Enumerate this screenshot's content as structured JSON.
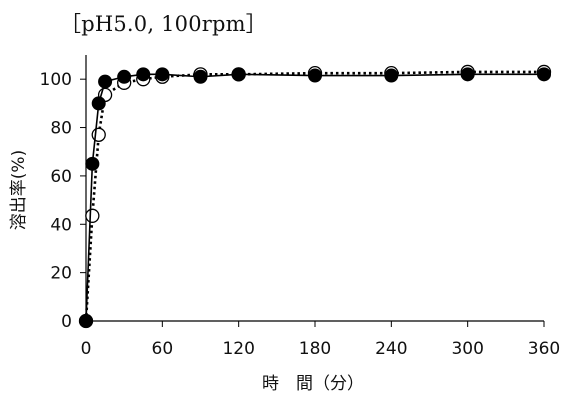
{
  "chart_data": {
    "type": "line",
    "title": "［pH5.0, 100rpm］",
    "xlabel": "時　間（分）",
    "ylabel": "溶出率(%)",
    "xlim": [
      0,
      360
    ],
    "ylim": [
      0,
      110
    ],
    "xticks": [
      0,
      60,
      120,
      180,
      240,
      300,
      360
    ],
    "yticks": [
      0,
      20,
      40,
      60,
      80,
      100
    ],
    "grid": false,
    "series": [
      {
        "marker": "filled-circle",
        "line": "solid",
        "color": "#000000",
        "points": [
          [
            0,
            0
          ],
          [
            5,
            65
          ],
          [
            10,
            90
          ],
          [
            15,
            99
          ],
          [
            30,
            101
          ],
          [
            45,
            102
          ],
          [
            60,
            102
          ],
          [
            90,
            101
          ],
          [
            120,
            102
          ],
          [
            180,
            101.5
          ],
          [
            240,
            101.5
          ],
          [
            300,
            102
          ],
          [
            360,
            102
          ]
        ]
      },
      {
        "marker": "open-circle",
        "line": "dotted",
        "color": "#000000",
        "points": [
          [
            0,
            0
          ],
          [
            5,
            43.5
          ],
          [
            10,
            77
          ],
          [
            15,
            93.5
          ],
          [
            30,
            98.5
          ],
          [
            45,
            100
          ],
          [
            60,
            101
          ],
          [
            90,
            102
          ],
          [
            120,
            102
          ],
          [
            180,
            102.5
          ],
          [
            240,
            102.5
          ],
          [
            300,
            103
          ],
          [
            360,
            103
          ]
        ]
      }
    ]
  }
}
